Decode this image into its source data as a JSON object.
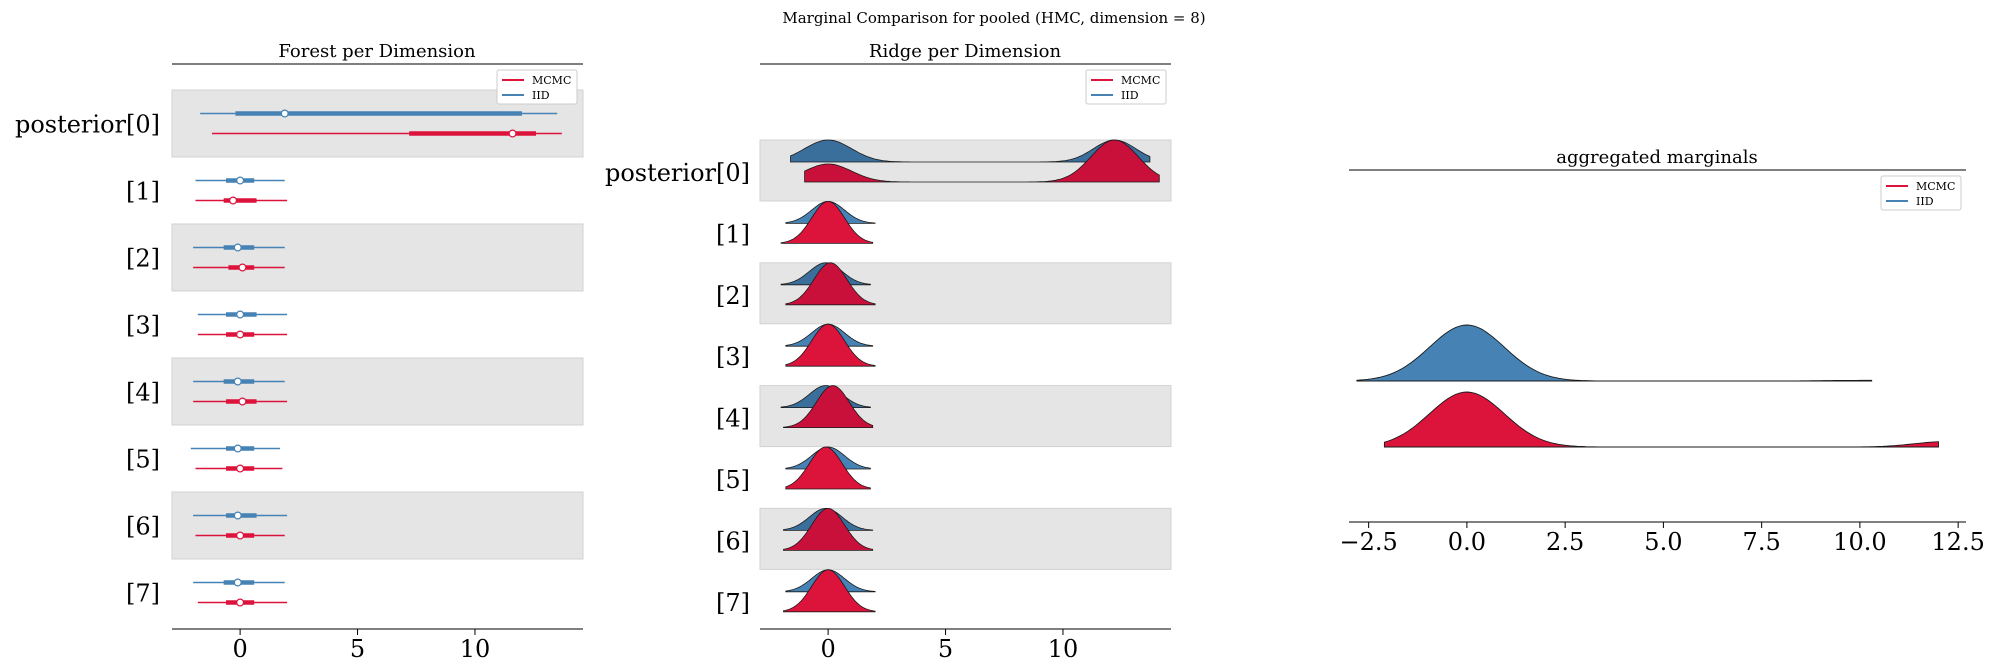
{
  "suptitle": "Marginal Comparison for pooled (HMC, dimension = 8)",
  "legend": {
    "mcmc": "MCMC",
    "iid": "IID"
  },
  "colors": {
    "mcmc": "#dc143c",
    "iid": "#4682b4",
    "band": "#e5e5e5",
    "mcmc_dark": "#c8103a",
    "iid_dark": "#3a6f9c"
  },
  "chart_data": [
    {
      "type": "forest",
      "title": "Forest per Dimension",
      "row_labels": [
        "posterior[0]",
        "[1]",
        "[2]",
        "[3]",
        "[4]",
        "[5]",
        "[6]",
        "[7]"
      ],
      "xlim": [
        -2.9,
        14.6
      ],
      "xticks": [
        0,
        5,
        10
      ],
      "legend_placement": "top-right",
      "series": [
        {
          "name": "MCMC",
          "rows": [
            {
              "lo": -1.2,
              "q25": 7.2,
              "median": 11.6,
              "q75": 12.6,
              "hi": 13.7
            },
            {
              "lo": -1.9,
              "q25": -0.7,
              "median": -0.3,
              "q75": 0.7,
              "hi": 2.0
            },
            {
              "lo": -2.0,
              "q25": -0.5,
              "median": 0.1,
              "q75": 0.6,
              "hi": 1.9
            },
            {
              "lo": -1.8,
              "q25": -0.6,
              "median": 0.0,
              "q75": 0.6,
              "hi": 2.0
            },
            {
              "lo": -2.0,
              "q25": -0.6,
              "median": 0.1,
              "q75": 0.7,
              "hi": 2.0
            },
            {
              "lo": -1.9,
              "q25": -0.6,
              "median": 0.0,
              "q75": 0.6,
              "hi": 1.8
            },
            {
              "lo": -1.9,
              "q25": -0.6,
              "median": 0.0,
              "q75": 0.6,
              "hi": 1.9
            },
            {
              "lo": -1.8,
              "q25": -0.6,
              "median": 0.0,
              "q75": 0.6,
              "hi": 2.0
            }
          ]
        },
        {
          "name": "IID",
          "rows": [
            {
              "lo": -1.7,
              "q25": -0.2,
              "median": 1.9,
              "q75": 12.0,
              "hi": 13.5
            },
            {
              "lo": -1.9,
              "q25": -0.6,
              "median": 0.0,
              "q75": 0.6,
              "hi": 1.9
            },
            {
              "lo": -2.0,
              "q25": -0.7,
              "median": -0.1,
              "q75": 0.6,
              "hi": 1.9
            },
            {
              "lo": -1.8,
              "q25": -0.6,
              "median": 0.0,
              "q75": 0.7,
              "hi": 2.0
            },
            {
              "lo": -2.0,
              "q25": -0.7,
              "median": -0.1,
              "q75": 0.6,
              "hi": 1.9
            },
            {
              "lo": -2.1,
              "q25": -0.6,
              "median": -0.1,
              "q75": 0.6,
              "hi": 1.7
            },
            {
              "lo": -2.0,
              "q25": -0.6,
              "median": -0.1,
              "q75": 0.7,
              "hi": 2.0
            },
            {
              "lo": -2.0,
              "q25": -0.7,
              "median": -0.1,
              "q75": 0.6,
              "hi": 1.9
            }
          ]
        }
      ]
    },
    {
      "type": "area",
      "subtype": "ridgeline",
      "title": "Ridge per Dimension",
      "row_labels": [
        "posterior[0]",
        "[1]",
        "[2]",
        "[3]",
        "[4]",
        "[5]",
        "[6]",
        "[7]"
      ],
      "xlim": [
        -2.9,
        14.6
      ],
      "xticks": [
        0,
        5,
        10
      ],
      "legend_placement": "top-right",
      "series": [
        {
          "name": "MCMC",
          "rows": [
            {
              "lo": -1.0,
              "hi": 14.1,
              "mix": [
                [
                  0.0,
                  1.0,
                  0.3
                ],
                [
                  12.2,
                  1.0,
                  0.7
                ]
              ]
            },
            {
              "lo": -2.0,
              "hi": 1.9,
              "mix": [
                [
                  0.0,
                  0.7,
                  1.0
                ]
              ]
            },
            {
              "lo": -1.8,
              "hi": 2.0,
              "mix": [
                [
                  0.1,
                  0.7,
                  1.0
                ]
              ]
            },
            {
              "lo": -1.8,
              "hi": 2.0,
              "mix": [
                [
                  0.0,
                  0.7,
                  1.0
                ]
              ]
            },
            {
              "lo": -1.9,
              "hi": 1.9,
              "mix": [
                [
                  0.2,
                  0.7,
                  1.0
                ]
              ]
            },
            {
              "lo": -1.8,
              "hi": 1.8,
              "mix": [
                [
                  -0.1,
                  0.7,
                  1.0
                ]
              ]
            },
            {
              "lo": -1.9,
              "hi": 1.9,
              "mix": [
                [
                  0.0,
                  0.7,
                  1.0
                ]
              ]
            },
            {
              "lo": -1.9,
              "hi": 2.0,
              "mix": [
                [
                  0.0,
                  0.7,
                  1.0
                ]
              ]
            }
          ]
        },
        {
          "name": "IID",
          "rows": [
            {
              "lo": -1.6,
              "hi": 13.7,
              "mix": [
                [
                  0.0,
                  1.0,
                  0.5
                ],
                [
                  12.2,
                  0.9,
                  0.5
                ]
              ]
            },
            {
              "lo": -1.8,
              "hi": 2.0,
              "mix": [
                [
                  0.0,
                  0.7,
                  1.0
                ]
              ]
            },
            {
              "lo": -2.0,
              "hi": 1.8,
              "mix": [
                [
                  -0.1,
                  0.7,
                  1.0
                ]
              ]
            },
            {
              "lo": -1.8,
              "hi": 1.9,
              "mix": [
                [
                  0.0,
                  0.7,
                  1.0
                ]
              ]
            },
            {
              "lo": -2.0,
              "hi": 1.8,
              "mix": [
                [
                  -0.1,
                  0.7,
                  1.0
                ]
              ]
            },
            {
              "lo": -1.8,
              "hi": 1.8,
              "mix": [
                [
                  0.0,
                  0.7,
                  1.0
                ]
              ]
            },
            {
              "lo": -1.9,
              "hi": 1.9,
              "mix": [
                [
                  -0.1,
                  0.7,
                  1.0
                ]
              ]
            },
            {
              "lo": -1.8,
              "hi": 2.0,
              "mix": [
                [
                  0.0,
                  0.7,
                  1.0
                ]
              ]
            }
          ]
        }
      ]
    },
    {
      "type": "area",
      "subtype": "ridgeline",
      "title": "aggregated marginals",
      "xlim": [
        -3.0,
        12.7
      ],
      "xticks": [
        -2.5,
        0.0,
        2.5,
        5.0,
        7.5,
        10.0,
        12.5
      ],
      "xtick_labels": [
        "−2.5",
        "0.0",
        "2.5",
        "5.0",
        "7.5",
        "10.0",
        "12.5"
      ],
      "legend_placement": "top-right",
      "series": [
        {
          "name": "IID",
          "lo": -2.8,
          "hi": 10.3,
          "mix": [
            [
              0.0,
              0.95,
              1.0
            ],
            [
              10.2,
              1.0,
              0.012
            ]
          ]
        },
        {
          "name": "MCMC",
          "lo": -2.1,
          "hi": 12.0,
          "mix": [
            [
              0.0,
              0.95,
              1.0
            ],
            [
              12.2,
              0.8,
              0.1
            ]
          ]
        }
      ]
    }
  ]
}
